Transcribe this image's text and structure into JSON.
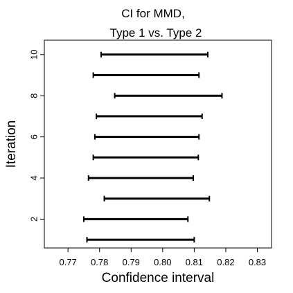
{
  "chart_data": {
    "type": "interval",
    "title_line1": "CI for MMD,",
    "title_line2": "Type 1 vs. Type 2",
    "xlabel": "Confidence interval",
    "ylabel": "Iteration",
    "xlim": [
      0.7625,
      0.8345
    ],
    "ylim": [
      0.6,
      10.7
    ],
    "x_ticks": [
      0.77,
      0.78,
      0.79,
      0.8,
      0.81,
      0.82,
      0.83
    ],
    "x_tick_labels": [
      "0.77",
      "0.78",
      "0.79",
      "0.80",
      "0.81",
      "0.82",
      "0.83"
    ],
    "y_ticks": [
      2,
      4,
      6,
      8,
      10
    ],
    "y_tick_labels": [
      "2",
      "4",
      "6",
      "8",
      "10"
    ],
    "grid": false,
    "line_color": "#000000",
    "intervals": [
      {
        "iteration": 1,
        "lower": 0.776,
        "upper": 0.81
      },
      {
        "iteration": 2,
        "lower": 0.775,
        "upper": 0.808
      },
      {
        "iteration": 3,
        "lower": 0.7815,
        "upper": 0.8148
      },
      {
        "iteration": 4,
        "lower": 0.7765,
        "upper": 0.8097
      },
      {
        "iteration": 5,
        "lower": 0.778,
        "upper": 0.8113
      },
      {
        "iteration": 6,
        "lower": 0.7785,
        "upper": 0.8115
      },
      {
        "iteration": 7,
        "lower": 0.779,
        "upper": 0.8125
      },
      {
        "iteration": 8,
        "lower": 0.7848,
        "upper": 0.8188
      },
      {
        "iteration": 9,
        "lower": 0.778,
        "upper": 0.8115
      },
      {
        "iteration": 10,
        "lower": 0.7805,
        "upper": 0.8143
      }
    ]
  }
}
